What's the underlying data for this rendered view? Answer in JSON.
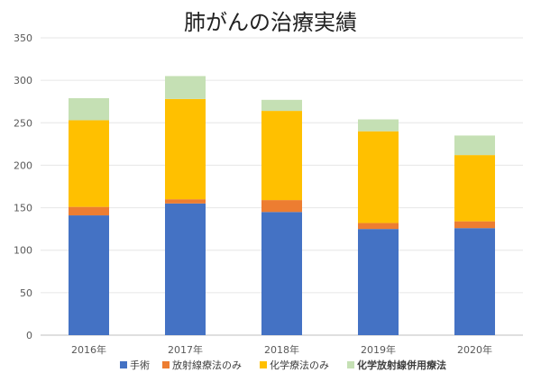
{
  "chart_data": {
    "type": "bar",
    "stacked": true,
    "title": "肺がんの治療実績",
    "xlabel": "",
    "ylabel": "",
    "ylim": [
      0,
      350
    ],
    "yticks": [
      0,
      50,
      100,
      150,
      200,
      250,
      300,
      350
    ],
    "grid": true,
    "legend_position": "bottom",
    "categories": [
      "2016年",
      "2017年",
      "2018年",
      "2019年",
      "2020年"
    ],
    "series": [
      {
        "name": "手術",
        "color": "#4472C4",
        "values": [
          141,
          155,
          145,
          125,
          126
        ]
      },
      {
        "name": "放射線療法のみ",
        "color": "#ED7D31",
        "values": [
          10,
          5,
          14,
          7,
          8
        ]
      },
      {
        "name": "化学療法のみ",
        "color": "#FFC000",
        "values": [
          102,
          118,
          105,
          108,
          78
        ]
      },
      {
        "name": "化学放射線併用療法",
        "color": "#C5E0B4",
        "values": [
          26,
          27,
          13,
          14,
          23
        ]
      }
    ]
  }
}
